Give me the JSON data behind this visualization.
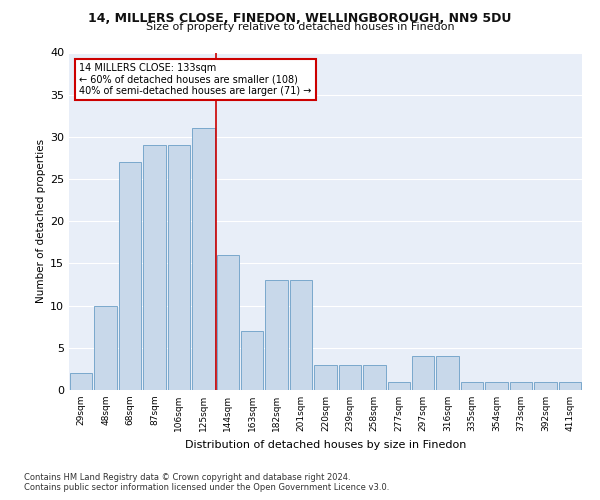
{
  "title1": "14, MILLERS CLOSE, FINEDON, WELLINGBOROUGH, NN9 5DU",
  "title2": "Size of property relative to detached houses in Finedon",
  "xlabel": "Distribution of detached houses by size in Finedon",
  "ylabel": "Number of detached properties",
  "categories": [
    "29sqm",
    "48sqm",
    "68sqm",
    "87sqm",
    "106sqm",
    "125sqm",
    "144sqm",
    "163sqm",
    "182sqm",
    "201sqm",
    "220sqm",
    "239sqm",
    "258sqm",
    "277sqm",
    "297sqm",
    "316sqm",
    "335sqm",
    "354sqm",
    "373sqm",
    "392sqm",
    "411sqm"
  ],
  "values": [
    2,
    10,
    27,
    29,
    29,
    31,
    16,
    7,
    13,
    13,
    3,
    3,
    3,
    1,
    4,
    4,
    1,
    1,
    1,
    1,
    1
  ],
  "bar_color": "#c8d8ea",
  "bar_edge_color": "#7aa8cc",
  "bar_edge_width": 0.7,
  "red_line_x": 5.5,
  "red_line_color": "#cc0000",
  "ylim": [
    0,
    40
  ],
  "yticks": [
    0,
    5,
    10,
    15,
    20,
    25,
    30,
    35,
    40
  ],
  "annotation_title": "14 MILLERS CLOSE: 133sqm",
  "annotation_line1": "← 60% of detached houses are smaller (108)",
  "annotation_line2": "40% of semi-detached houses are larger (71) →",
  "annotation_box_color": "#ffffff",
  "annotation_box_edge": "#cc0000",
  "footer1": "Contains HM Land Registry data © Crown copyright and database right 2024.",
  "footer2": "Contains public sector information licensed under the Open Government Licence v3.0.",
  "plot_bg_color": "#e8eef8",
  "grid_color": "#ffffff"
}
